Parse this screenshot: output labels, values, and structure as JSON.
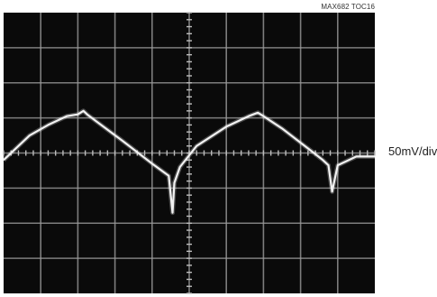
{
  "figure": {
    "toc_label": "MAX682 TOC16",
    "scale_label": "50mV/div"
  },
  "chart_data": {
    "type": "line",
    "title": "",
    "xlabel": "",
    "ylabel": "",
    "grid": true,
    "grid_divisions": {
      "x": 10,
      "y": 8
    },
    "xlim": [
      0,
      10
    ],
    "ylim": [
      -4,
      4
    ],
    "y_units": "div",
    "vertical_scale": "50mV/div",
    "series": [
      {
        "x": [
          0,
          0.3,
          0.7,
          1.2,
          1.7,
          2.0,
          2.15,
          2.25,
          2.5,
          3.2,
          4.0,
          4.45,
          4.55,
          4.6,
          4.75,
          5.2,
          6.0,
          6.6,
          6.85,
          7.0,
          7.5,
          8.3,
          8.6,
          8.75,
          8.85,
          9.0,
          9.5,
          10
        ],
        "y": [
          -0.2,
          0.1,
          0.5,
          0.8,
          1.05,
          1.1,
          1.2,
          1.1,
          0.9,
          0.35,
          -0.3,
          -0.65,
          -1.7,
          -0.85,
          -0.4,
          0.2,
          0.75,
          1.05,
          1.15,
          1.05,
          0.7,
          0.05,
          -0.2,
          -0.35,
          -1.1,
          -0.35,
          -0.1,
          -0.1
        ]
      }
    ]
  }
}
